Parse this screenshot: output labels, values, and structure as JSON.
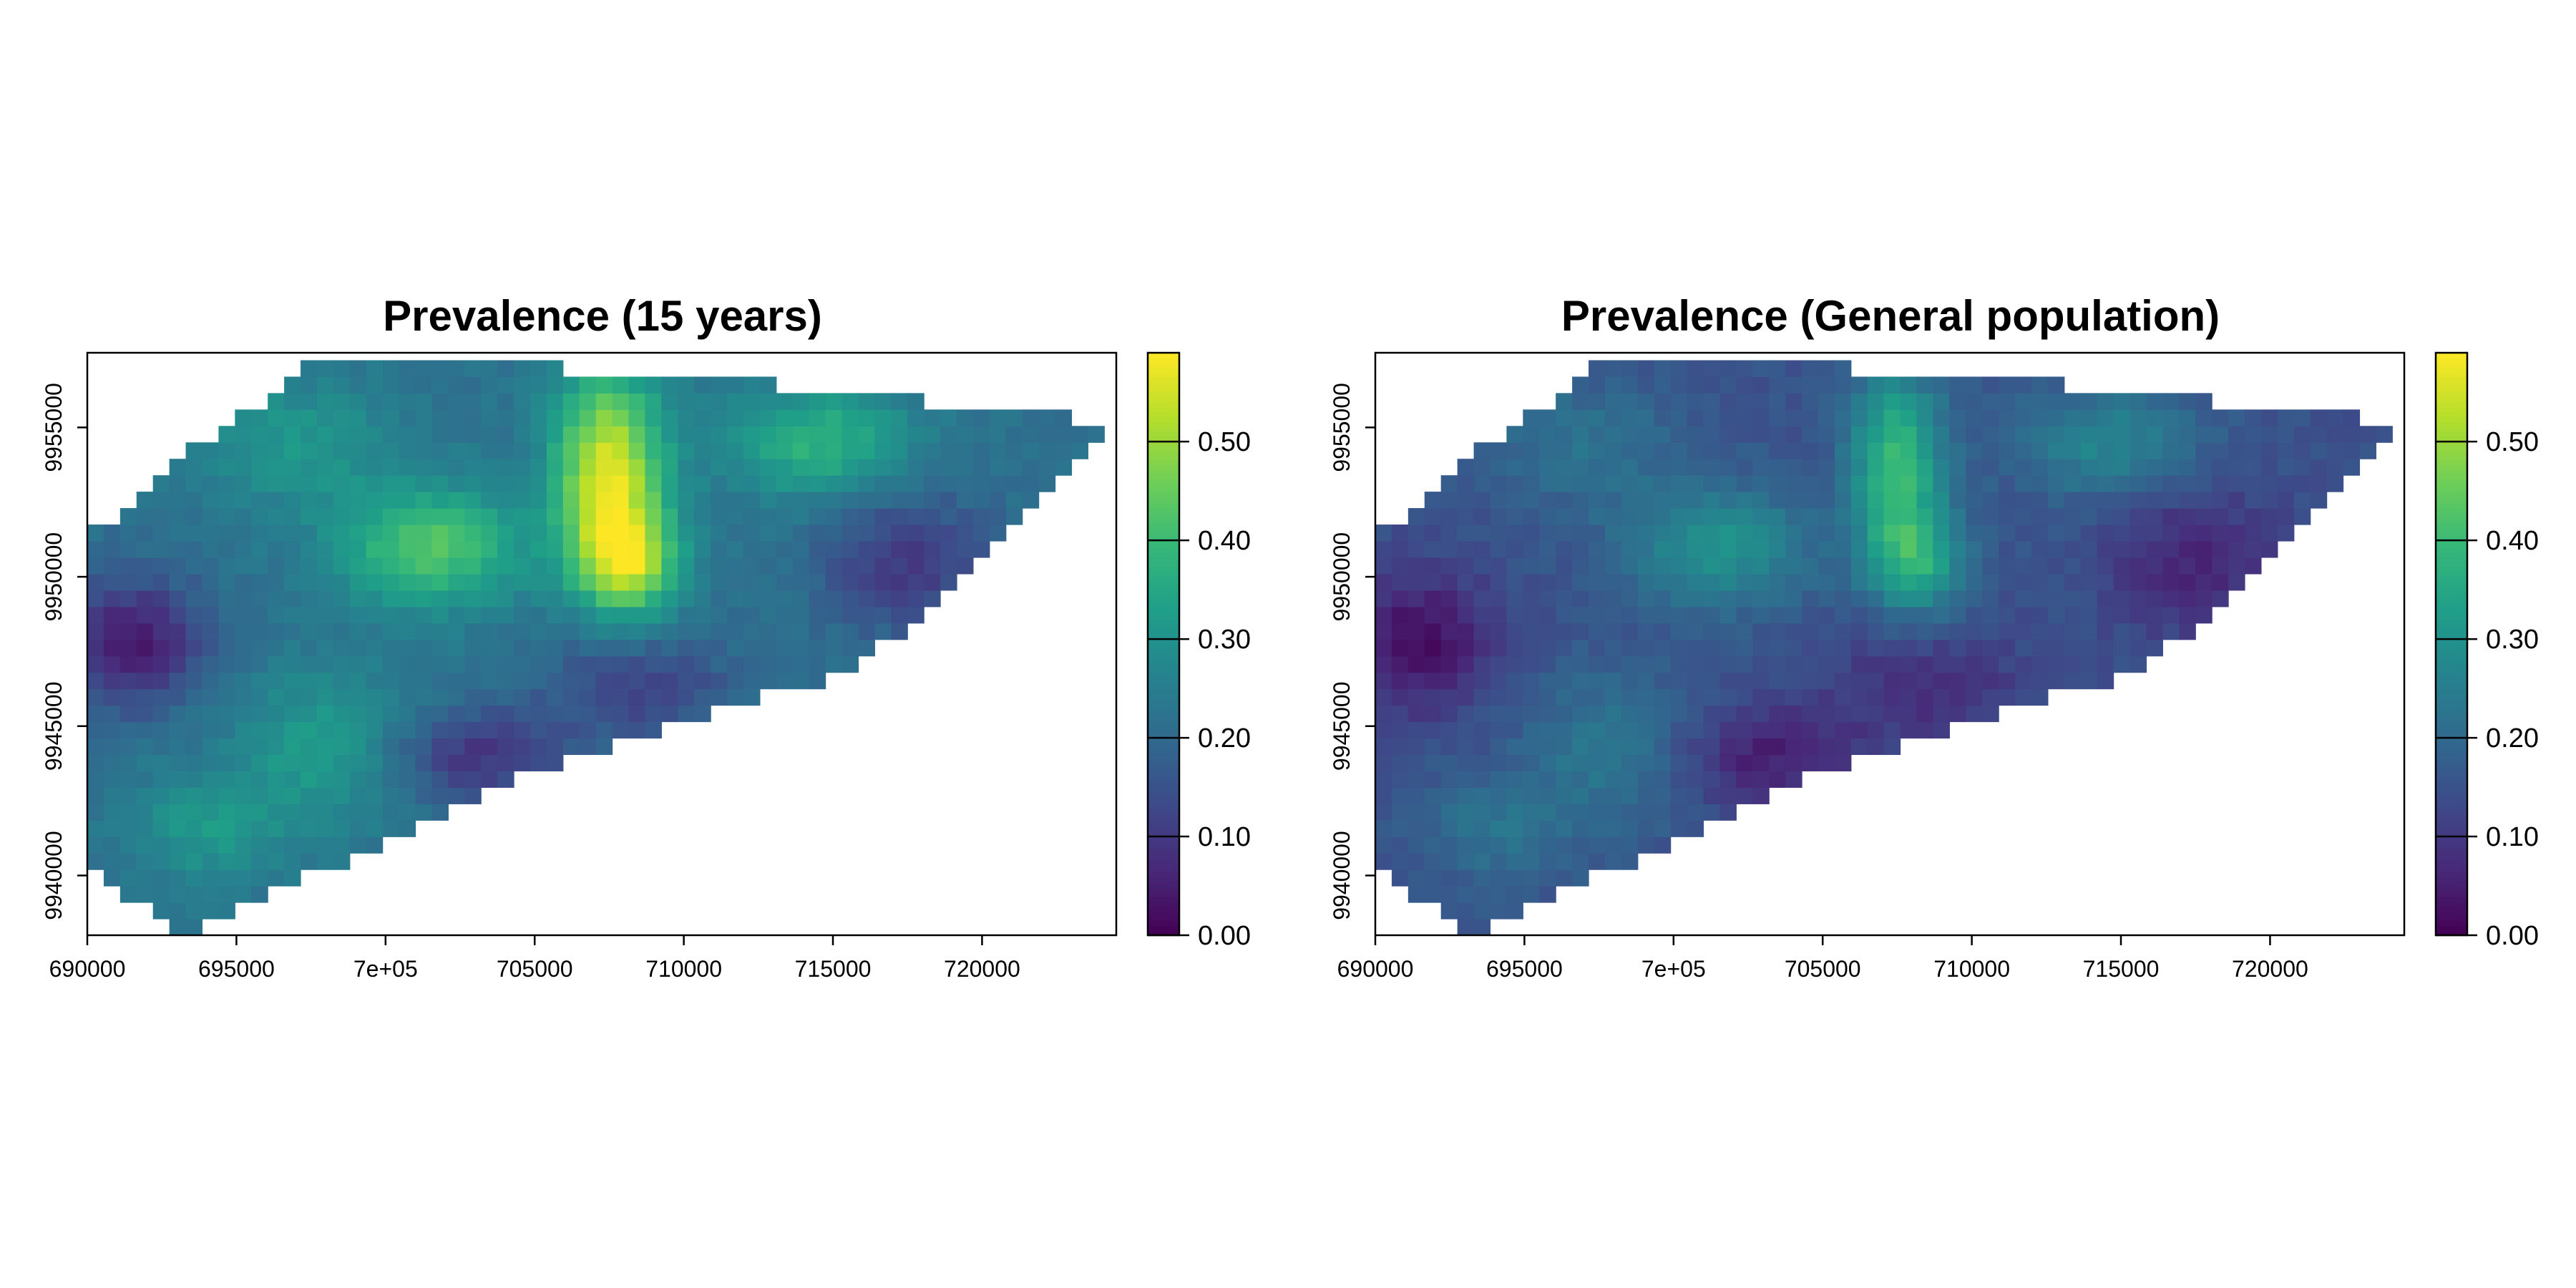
{
  "chart_data": [
    {
      "type": "heatmap",
      "title": "Prevalence (15 years)",
      "xlabel": "",
      "ylabel": "",
      "xlim": [
        690000,
        724500
      ],
      "ylim": [
        9938000,
        9957500
      ],
      "x_ticks": [
        690000,
        695000,
        700000,
        705000,
        710000,
        715000,
        720000
      ],
      "x_tick_labels": [
        "690000",
        "695000",
        "7e+05",
        "705000",
        "710000",
        "715000",
        "720000"
      ],
      "y_ticks": [
        9940000,
        9945000,
        9950000,
        9955000
      ],
      "y_tick_labels": [
        "9940000",
        "9945000",
        "9950000",
        "9955000"
      ],
      "colorbar": {
        "range": [
          0,
          0.59
        ],
        "ticks": [
          0,
          0.1,
          0.2,
          0.3,
          0.4,
          0.5
        ],
        "tick_labels": [
          "0.00",
          "0.10",
          "0.20",
          "0.30",
          "0.40",
          "0.50"
        ],
        "palette": [
          "#440154",
          "#482878",
          "#3e4989",
          "#31688e",
          "#26828e",
          "#1f9e89",
          "#35b779",
          "#6ece58",
          "#b5de2b",
          "#fde725"
        ]
      },
      "grid": false,
      "region_boundary": {
        "top_edge": [
          [
            690000,
            9951800
          ],
          [
            690800,
            9951800
          ],
          [
            692000,
            9953000
          ],
          [
            693500,
            9954200
          ],
          [
            695000,
            9955300
          ],
          [
            697000,
            9956500
          ],
          [
            697000,
            9957500
          ],
          [
            703000,
            9957500
          ],
          [
            703000,
            9957000
          ],
          [
            706000,
            9957000
          ],
          [
            706000,
            9956500
          ],
          [
            713000,
            9956500
          ],
          [
            713000,
            9956000
          ],
          [
            718000,
            9956000
          ],
          [
            718000,
            9955500
          ],
          [
            723000,
            9955500
          ],
          [
            723000,
            9955000
          ],
          [
            724500,
            9955000
          ]
        ],
        "bottom_edge": [
          [
            724500,
            9955000
          ],
          [
            724000,
            9954500
          ],
          [
            722500,
            9953000
          ],
          [
            721000,
            9951500
          ],
          [
            719000,
            9949500
          ],
          [
            717000,
            9948000
          ],
          [
            715000,
            9946600
          ],
          [
            712000,
            9945800
          ],
          [
            709000,
            9944800
          ],
          [
            706000,
            9943800
          ],
          [
            703000,
            9942600
          ],
          [
            700500,
            9941300
          ],
          [
            698000,
            9940200
          ],
          [
            696000,
            9939300
          ],
          [
            694500,
            9938500
          ],
          [
            693500,
            9938000
          ],
          [
            692000,
            9938800
          ],
          [
            690000,
            9940300
          ]
        ]
      },
      "hotspots": [
        {
          "x": 707500,
          "y": 9953500,
          "value": 0.56,
          "sx": 1300,
          "sy": 2400
        },
        {
          "x": 708200,
          "y": 9950500,
          "value": 0.47,
          "sx": 1200,
          "sy": 1200
        },
        {
          "x": 701500,
          "y": 9951000,
          "value": 0.43,
          "sx": 2200,
          "sy": 1400
        },
        {
          "x": 714500,
          "y": 9954500,
          "value": 0.38,
          "sx": 2200,
          "sy": 1300
        },
        {
          "x": 698000,
          "y": 9944300,
          "value": 0.33,
          "sx": 2200,
          "sy": 1800
        },
        {
          "x": 694000,
          "y": 9941500,
          "value": 0.31,
          "sx": 1800,
          "sy": 1300
        },
        {
          "x": 697000,
          "y": 9954500,
          "value": 0.31,
          "sx": 2500,
          "sy": 1600
        },
        {
          "x": 691500,
          "y": 9947800,
          "value": 0.04,
          "sx": 1700,
          "sy": 1500
        },
        {
          "x": 703000,
          "y": 9944000,
          "value": 0.09,
          "sx": 2300,
          "sy": 1100
        },
        {
          "x": 717500,
          "y": 9950500,
          "value": 0.1,
          "sx": 2000,
          "sy": 1700
        },
        {
          "x": 708500,
          "y": 9946300,
          "value": 0.12,
          "sx": 2200,
          "sy": 1200
        }
      ],
      "background_value": 0.22
    },
    {
      "type": "heatmap",
      "title": "Prevalence (General population)",
      "xlabel": "",
      "ylabel": "",
      "xlim": [
        690000,
        724500
      ],
      "ylim": [
        9938000,
        9957500
      ],
      "x_ticks": [
        690000,
        695000,
        700000,
        705000,
        710000,
        715000,
        720000
      ],
      "x_tick_labels": [
        "690000",
        "695000",
        "7e+05",
        "705000",
        "710000",
        "715000",
        "720000"
      ],
      "y_ticks": [
        9940000,
        9945000,
        9950000,
        9955000
      ],
      "y_tick_labels": [
        "9940000",
        "9945000",
        "9950000",
        "9955000"
      ],
      "colorbar": {
        "range": [
          0,
          0.59
        ],
        "ticks": [
          0,
          0.1,
          0.2,
          0.3,
          0.4,
          0.5
        ],
        "tick_labels": [
          "0.00",
          "0.10",
          "0.20",
          "0.30",
          "0.40",
          "0.50"
        ],
        "palette": [
          "#440154",
          "#482878",
          "#3e4989",
          "#31688e",
          "#26828e",
          "#1f9e89",
          "#35b779",
          "#6ece58",
          "#b5de2b",
          "#fde725"
        ]
      },
      "grid": false,
      "region_boundary": {
        "top_edge": [
          [
            690000,
            9951800
          ],
          [
            690800,
            9951800
          ],
          [
            692000,
            9953000
          ],
          [
            693500,
            9954200
          ],
          [
            695000,
            9955300
          ],
          [
            697000,
            9956500
          ],
          [
            697000,
            9957500
          ],
          [
            703000,
            9957500
          ],
          [
            703000,
            9957000
          ],
          [
            706000,
            9957000
          ],
          [
            706000,
            9956500
          ],
          [
            713000,
            9956500
          ],
          [
            713000,
            9956000
          ],
          [
            718000,
            9956000
          ],
          [
            718000,
            9955500
          ],
          [
            723000,
            9955500
          ],
          [
            723000,
            9955000
          ],
          [
            724500,
            9955000
          ]
        ],
        "bottom_edge": [
          [
            724500,
            9955000
          ],
          [
            724000,
            9954500
          ],
          [
            722500,
            9953000
          ],
          [
            721000,
            9951500
          ],
          [
            719000,
            9949500
          ],
          [
            717000,
            9948000
          ],
          [
            715000,
            9946600
          ],
          [
            712000,
            9945800
          ],
          [
            709000,
            9944800
          ],
          [
            706000,
            9943800
          ],
          [
            703000,
            9942600
          ],
          [
            700500,
            9941300
          ],
          [
            698000,
            9940200
          ],
          [
            696000,
            9939300
          ],
          [
            694500,
            9938500
          ],
          [
            693500,
            9938000
          ],
          [
            692000,
            9938800
          ],
          [
            690000,
            9940300
          ]
        ]
      },
      "hotspots": [
        {
          "x": 707500,
          "y": 9953800,
          "value": 0.4,
          "sx": 1100,
          "sy": 2200
        },
        {
          "x": 708200,
          "y": 9950500,
          "value": 0.33,
          "sx": 1200,
          "sy": 1200
        },
        {
          "x": 701500,
          "y": 9951000,
          "value": 0.3,
          "sx": 2200,
          "sy": 1400
        },
        {
          "x": 714500,
          "y": 9954500,
          "value": 0.27,
          "sx": 2200,
          "sy": 1300
        },
        {
          "x": 698000,
          "y": 9944300,
          "value": 0.24,
          "sx": 2200,
          "sy": 1800
        },
        {
          "x": 694000,
          "y": 9941500,
          "value": 0.22,
          "sx": 1800,
          "sy": 1300
        },
        {
          "x": 697000,
          "y": 9954500,
          "value": 0.22,
          "sx": 2500,
          "sy": 1600
        },
        {
          "x": 691500,
          "y": 9947800,
          "value": 0.02,
          "sx": 1700,
          "sy": 1600
        },
        {
          "x": 703000,
          "y": 9944000,
          "value": 0.05,
          "sx": 2400,
          "sy": 1200
        },
        {
          "x": 717500,
          "y": 9950500,
          "value": 0.06,
          "sx": 2000,
          "sy": 1700
        },
        {
          "x": 708500,
          "y": 9946300,
          "value": 0.08,
          "sx": 2300,
          "sy": 1300
        }
      ],
      "background_value": 0.15
    }
  ]
}
